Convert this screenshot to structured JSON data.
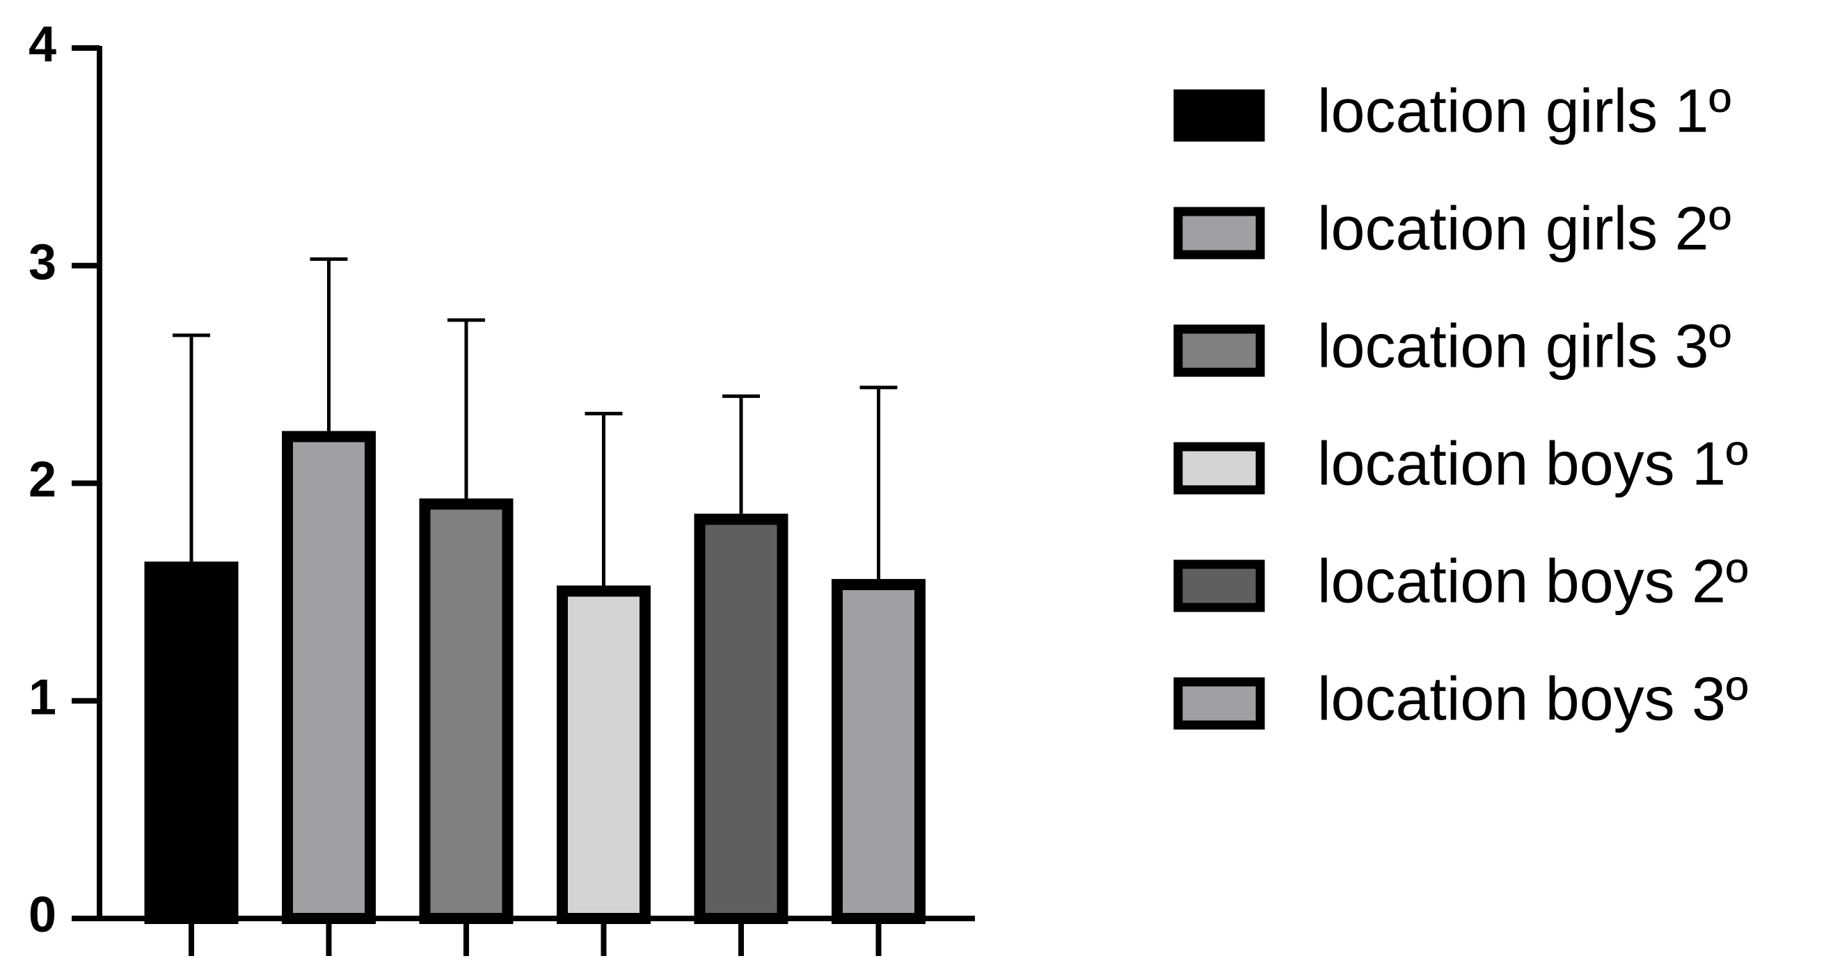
{
  "chart_data": {
    "type": "bar",
    "ylim": [
      0,
      4
    ],
    "yticks": [
      0,
      1,
      2,
      3,
      4
    ],
    "series": [
      {
        "name": "location girls 1º",
        "color": "#000000",
        "values": [
          1.64
        ],
        "errors": [
          1.04
        ]
      },
      {
        "name": "location girls 2º",
        "color": "#a0a0a4",
        "values": [
          2.24
        ],
        "errors": [
          0.79
        ]
      },
      {
        "name": "location girls 3º",
        "color": "#808080",
        "values": [
          1.93
        ],
        "errors": [
          0.82
        ]
      },
      {
        "name": "location boys 1º",
        "color": "#d4d4d4",
        "values": [
          1.53
        ],
        "errors": [
          0.79
        ]
      },
      {
        "name": "location boys 2º",
        "color": "#5f5f5f",
        "values": [
          1.86
        ],
        "errors": [
          0.54
        ]
      },
      {
        "name": "location boys 3º",
        "color": "#a0a0a4",
        "values": [
          1.56
        ],
        "errors": [
          0.88
        ]
      }
    ]
  }
}
